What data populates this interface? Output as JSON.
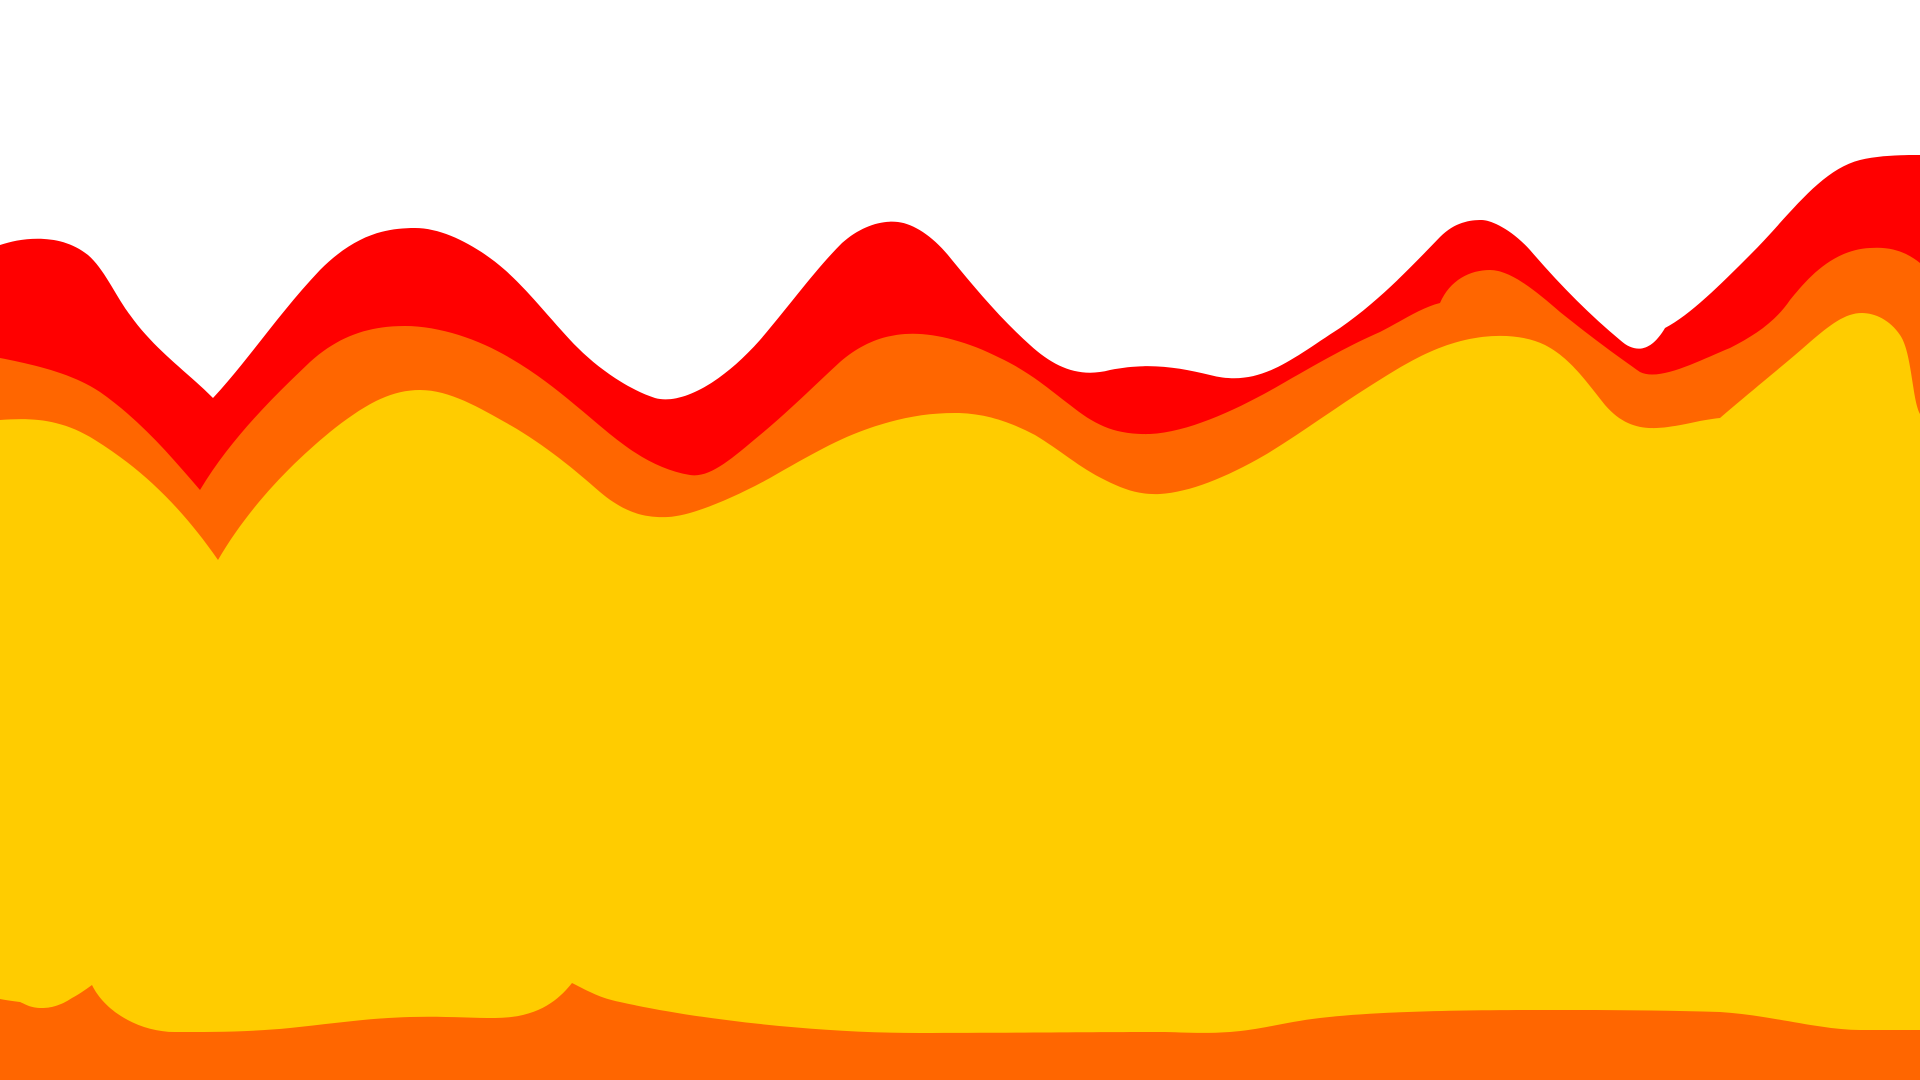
{
  "artwork": {
    "background_color": "#ffffff",
    "layers": [
      {
        "name": "red-wave",
        "color": "#ff0000"
      },
      {
        "name": "orange-wave",
        "color": "#ff6600"
      },
      {
        "name": "yellow-mass",
        "color": "#ffcc00"
      }
    ]
  }
}
